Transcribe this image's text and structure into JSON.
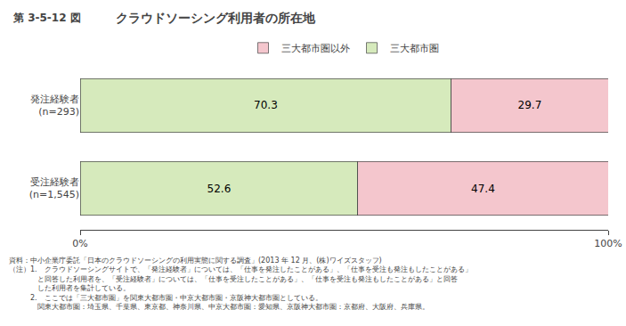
{
  "chart_data": {
    "type": "bar",
    "orientation": "horizontal",
    "stacked": true,
    "title": "クラウドソーシング利用者の所在地",
    "title_prefix": "第 3-5-12 図",
    "categories": [
      "発注経験者\n(n=293)",
      "受注経験者\n(n=1,545)"
    ],
    "series": [
      {
        "name": "三大都市圏",
        "color": "#d6eabc",
        "values": [
          70.3,
          52.6
        ]
      },
      {
        "name": "三大都市圏以外",
        "color": "#f4c6cd",
        "values": [
          29.7,
          47.4
        ]
      }
    ],
    "xlim": [
      0,
      100
    ],
    "xticks": [
      {
        "value": 0,
        "label": "0%"
      },
      {
        "value": 100,
        "label": "100%"
      }
    ],
    "data_labels": true,
    "grid": false,
    "legend": "top",
    "annotations": [
      "資料：中小企業庁委託「日本のクラウドソーシングの利用実態に関する調査」(2013 年 12 月、(株)ワイズスタッフ)",
      "（注）1.　クラウドソーシングサイトで、「発注経験者」については、「仕事を発注したことがある」、「仕事を受注も発注もしたことがある」",
      "　　　　と回答した利用者を、「受注経験者」については、「仕事を受注したことがある」、「仕事を受注も発注もしたことがある」と回答",
      "　　　　した利用者を集計している。",
      "　　　2.　ここでは「三大都市圏」を関東大都市圏・中京大都市圏・京阪神大都市圏としている。",
      "　　　　関東大都市圏：埼玉県、千葉県、東京都、神奈川県、中京大都市圏：愛知県、京阪神大都市圏：京都府、大阪府、兵庫県。"
    ]
  }
}
